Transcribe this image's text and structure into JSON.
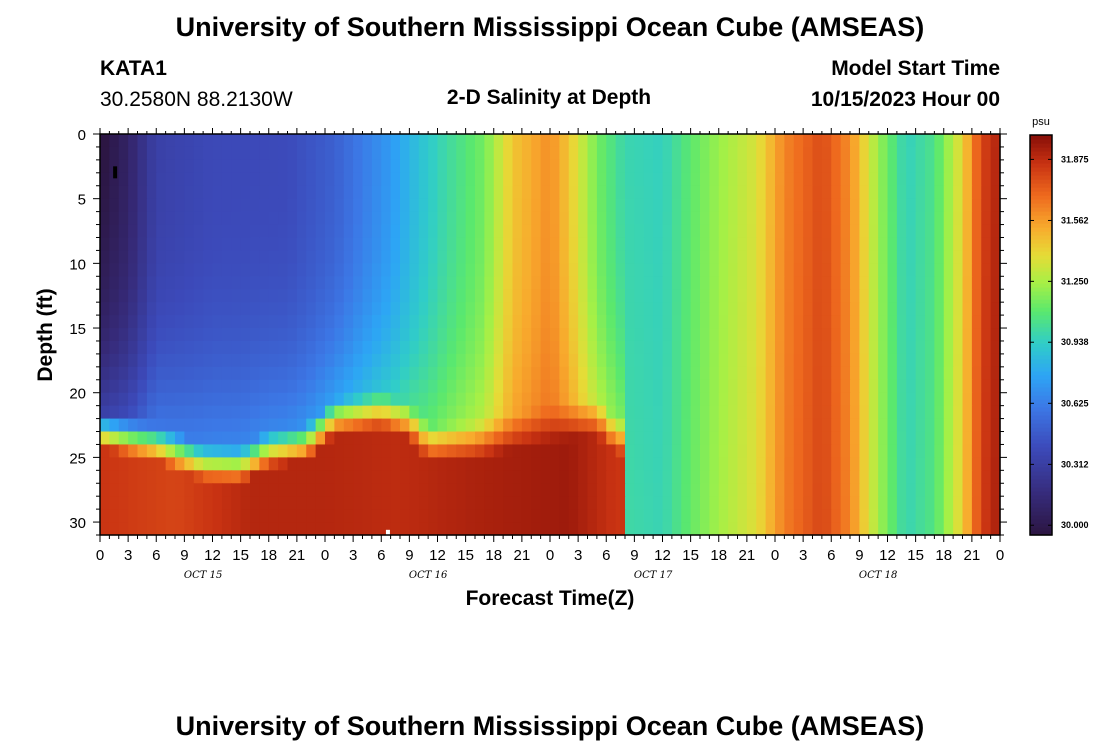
{
  "chart_data": {
    "type": "heatmap",
    "title": "University of Southern Mississippi Ocean Cube (AMSEAS)",
    "station": "KATA1",
    "location": "30.2580N  88.2130W",
    "subtitle": "2-D Salinity at Depth",
    "model_start_label": "Model Start Time",
    "model_start_value": "10/15/2023 Hour 00",
    "xlabel": "Forecast Time(Z)",
    "ylabel": "Depth (ft)",
    "x_range": [
      0,
      96
    ],
    "y_range": [
      0,
      31
    ],
    "x_ticks": [
      {
        "v": 0,
        "label": "0"
      },
      {
        "v": 3,
        "label": "3"
      },
      {
        "v": 6,
        "label": "6"
      },
      {
        "v": 9,
        "label": "9"
      },
      {
        "v": 12,
        "label": "12"
      },
      {
        "v": 15,
        "label": "15"
      },
      {
        "v": 18,
        "label": "18"
      },
      {
        "v": 21,
        "label": "21"
      },
      {
        "v": 24,
        "label": "0"
      },
      {
        "v": 27,
        "label": "3"
      },
      {
        "v": 30,
        "label": "6"
      },
      {
        "v": 33,
        "label": "9"
      },
      {
        "v": 36,
        "label": "12"
      },
      {
        "v": 39,
        "label": "15"
      },
      {
        "v": 42,
        "label": "18"
      },
      {
        "v": 45,
        "label": "21"
      },
      {
        "v": 48,
        "label": "0"
      },
      {
        "v": 51,
        "label": "3"
      },
      {
        "v": 54,
        "label": "6"
      },
      {
        "v": 57,
        "label": "9"
      },
      {
        "v": 60,
        "label": "12"
      },
      {
        "v": 63,
        "label": "15"
      },
      {
        "v": 66,
        "label": "18"
      },
      {
        "v": 69,
        "label": "21"
      },
      {
        "v": 72,
        "label": "0"
      },
      {
        "v": 75,
        "label": "3"
      },
      {
        "v": 78,
        "label": "6"
      },
      {
        "v": 81,
        "label": "9"
      },
      {
        "v": 84,
        "label": "12"
      },
      {
        "v": 87,
        "label": "15"
      },
      {
        "v": 90,
        "label": "18"
      },
      {
        "v": 93,
        "label": "21"
      },
      {
        "v": 96,
        "label": "0"
      }
    ],
    "y_ticks": [
      {
        "v": 0,
        "label": "0"
      },
      {
        "v": 5,
        "label": "5"
      },
      {
        "v": 10,
        "label": "10"
      },
      {
        "v": 15,
        "label": "15"
      },
      {
        "v": 20,
        "label": "20"
      },
      {
        "v": 25,
        "label": "25"
      },
      {
        "v": 30,
        "label": "30"
      }
    ],
    "date_labels": [
      {
        "v": 11,
        "label": "OCT 15"
      },
      {
        "v": 35,
        "label": "OCT 16"
      },
      {
        "v": 59,
        "label": "OCT 17"
      },
      {
        "v": 83,
        "label": "OCT 18"
      }
    ],
    "colorbar": {
      "unit": "psu",
      "range": [
        29.95,
        32.0
      ],
      "ticks": [
        30.0,
        30.312,
        30.625,
        30.938,
        31.25,
        31.562,
        31.875
      ],
      "tick_labels": [
        "30.000",
        "30.312",
        "30.625",
        "30.938",
        "31.250",
        "31.562",
        "31.875"
      ]
    },
    "surface_profile": [
      {
        "t": 0,
        "v": 29.98
      },
      {
        "t": 3,
        "v": 30.1
      },
      {
        "t": 6,
        "v": 30.33
      },
      {
        "t": 12,
        "v": 30.39
      },
      {
        "t": 20,
        "v": 30.4
      },
      {
        "t": 25,
        "v": 30.5
      },
      {
        "t": 28,
        "v": 30.62
      },
      {
        "t": 31,
        "v": 30.73
      },
      {
        "t": 34,
        "v": 30.88
      },
      {
        "t": 37,
        "v": 31.0
      },
      {
        "t": 41,
        "v": 31.15
      },
      {
        "t": 44,
        "v": 31.45
      },
      {
        "t": 48,
        "v": 31.6
      },
      {
        "t": 50,
        "v": 31.45
      },
      {
        "t": 53,
        "v": 31.15
      },
      {
        "t": 56,
        "v": 30.98
      },
      {
        "t": 60,
        "v": 30.95
      },
      {
        "t": 63,
        "v": 31.1
      },
      {
        "t": 66,
        "v": 31.22
      },
      {
        "t": 70,
        "v": 31.35
      },
      {
        "t": 73,
        "v": 31.62
      },
      {
        "t": 77,
        "v": 31.78
      },
      {
        "t": 80,
        "v": 31.6
      },
      {
        "t": 83,
        "v": 31.22
      },
      {
        "t": 86,
        "v": 30.95
      },
      {
        "t": 89,
        "v": 31.05
      },
      {
        "t": 92,
        "v": 31.4
      },
      {
        "t": 94,
        "v": 31.8
      },
      {
        "t": 96,
        "v": 31.92
      }
    ],
    "bottom_profile": [
      {
        "t": 0,
        "v": 31.85
      },
      {
        "t": 8,
        "v": 31.8
      },
      {
        "t": 16,
        "v": 31.9
      },
      {
        "t": 24,
        "v": 31.9
      },
      {
        "t": 32,
        "v": 31.88
      },
      {
        "t": 40,
        "v": 31.92
      },
      {
        "t": 50,
        "v": 31.95
      },
      {
        "t": 55,
        "v": 31.85
      }
    ],
    "halocline_depth": [
      {
        "t": 0,
        "d": 21.5
      },
      {
        "t": 6,
        "d": 22.5
      },
      {
        "t": 11,
        "d": 24.0
      },
      {
        "t": 15,
        "d": 24.2
      },
      {
        "t": 18,
        "d": 23.0
      },
      {
        "t": 22,
        "d": 22.5
      },
      {
        "t": 25,
        "d": 20.5
      },
      {
        "t": 30,
        "d": 20.0
      },
      {
        "t": 33,
        "d": 20.8
      },
      {
        "t": 35,
        "d": 22.5
      },
      {
        "t": 40,
        "d": 22.3
      },
      {
        "t": 45,
        "d": 21.5
      },
      {
        "t": 50,
        "d": 20.8
      },
      {
        "t": 53,
        "d": 20.5
      },
      {
        "t": 55,
        "d": 22.0
      }
    ],
    "mixing_end_hour": 56,
    "footer_title": "University of Southern Mississippi Ocean Cube (AMSEAS)"
  }
}
